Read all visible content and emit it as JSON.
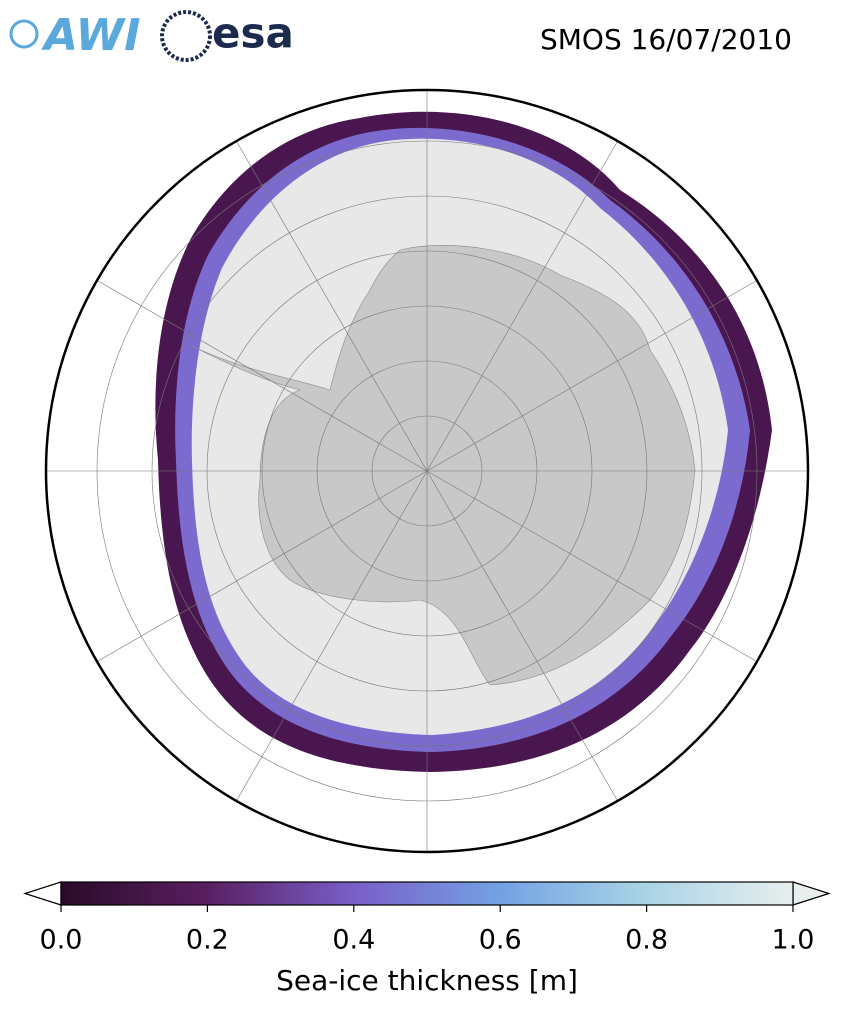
{
  "header": {
    "logos": [
      "AWI",
      "esa"
    ],
    "title": "SMOS 16/07/2010"
  },
  "colorbar": {
    "label": "Sea-ice thickness [m]",
    "range": [
      0,
      1
    ],
    "ticks": [
      {
        "value": 0,
        "label": "0.0"
      },
      {
        "value": 0.2,
        "label": "0.2"
      },
      {
        "value": 0.4,
        "label": "0.4"
      },
      {
        "value": 0.6,
        "label": "0.6"
      },
      {
        "value": 0.8,
        "label": "0.8"
      },
      {
        "value": 1,
        "label": "1.0"
      }
    ],
    "colors": [
      "#2a0a28",
      "#5a1f62",
      "#7a5ec8",
      "#73a2e4",
      "#a9d4e6",
      "#e8eeee"
    ]
  }
}
